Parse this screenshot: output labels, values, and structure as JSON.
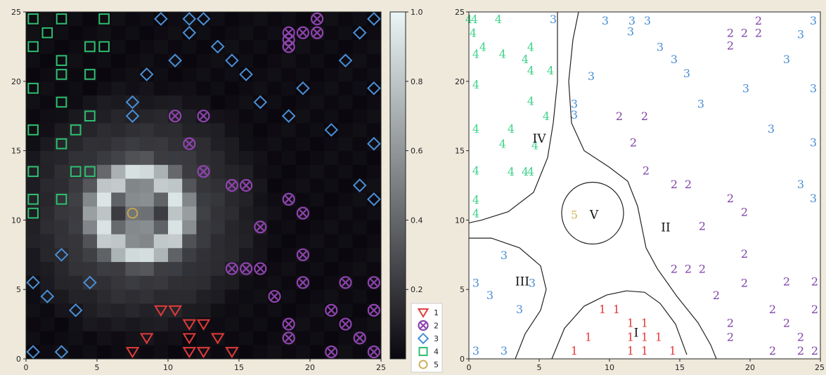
{
  "chart_data": [
    {
      "type": "scatter",
      "panel": "left",
      "xlim": [
        0,
        25
      ],
      "ylim": [
        0,
        25
      ],
      "xticks": [
        "0",
        "5",
        "10",
        "15",
        "20",
        "25"
      ],
      "yticks": [
        "0",
        "5",
        "10",
        "15",
        "20",
        "25"
      ],
      "background": "heatmap",
      "heatmap_feature": {
        "shape": "ring",
        "center": [
          8,
          10.5
        ],
        "inner_radius": 1.5,
        "outer_radius": 4.2,
        "peak": 1.0
      },
      "colorbar": {
        "range": [
          0,
          1.0
        ],
        "ticks": [
          "0.2",
          "0.4",
          "0.6",
          "0.8",
          "1.0"
        ]
      },
      "legend": {
        "placement": "bottom-right",
        "entries": [
          {
            "label": "1",
            "marker": "triangle-down",
            "color": "#e23a3a"
          },
          {
            "label": "2",
            "marker": "x-in-circle",
            "color": "#8e44ad"
          },
          {
            "label": "3",
            "marker": "diamond",
            "color": "#4a8fd6"
          },
          {
            "label": "4",
            "marker": "square",
            "color": "#2fbf71"
          },
          {
            "label": "5",
            "marker": "circle",
            "color": "#c9a94b"
          }
        ]
      },
      "series": [
        {
          "label": "1",
          "points": [
            [
              7.5,
              0.5
            ],
            [
              8.5,
              1.5
            ],
            [
              9.5,
              3.5
            ],
            [
              10.5,
              3.5
            ],
            [
              11.5,
              0.5
            ],
            [
              11.5,
              1.5
            ],
            [
              11.5,
              2.5
            ],
            [
              12.5,
              0.5
            ],
            [
              12.5,
              2.5
            ],
            [
              13.5,
              1.5
            ],
            [
              14.5,
              0.5
            ]
          ]
        },
        {
          "label": "2",
          "points": [
            [
              10.5,
              17.5
            ],
            [
              11.5,
              15.5
            ],
            [
              12.5,
              17.5
            ],
            [
              12.5,
              13.5
            ],
            [
              14.5,
              12.5
            ],
            [
              15.5,
              12.5
            ],
            [
              16.5,
              9.5
            ],
            [
              14.5,
              6.5
            ],
            [
              15.5,
              6.5
            ],
            [
              16.5,
              6.5
            ],
            [
              17.5,
              4.5
            ],
            [
              18.5,
              11.5
            ],
            [
              18.5,
              2.5
            ],
            [
              18.5,
              1.5
            ],
            [
              19.5,
              10.5
            ],
            [
              19.5,
              7.5
            ],
            [
              19.5,
              5.5
            ],
            [
              21.5,
              0.5
            ],
            [
              21.5,
              3.5
            ],
            [
              22.5,
              2.5
            ],
            [
              22.5,
              5.5
            ],
            [
              23.5,
              1.5
            ],
            [
              24.5,
              0.5
            ],
            [
              24.5,
              3.5
            ],
            [
              24.5,
              5.5
            ],
            [
              18.5,
              23.5
            ],
            [
              18.5,
              22.5
            ],
            [
              18.5,
              23.0
            ],
            [
              19.5,
              23.5
            ],
            [
              20.5,
              23.5
            ],
            [
              20.5,
              24.5
            ]
          ]
        },
        {
          "label": "3",
          "points": [
            [
              9.5,
              24.5
            ],
            [
              11.5,
              24.5
            ],
            [
              12.5,
              24.5
            ],
            [
              11.5,
              23.5
            ],
            [
              13.5,
              22.5
            ],
            [
              14.5,
              21.5
            ],
            [
              10.5,
              21.5
            ],
            [
              15.5,
              20.5
            ],
            [
              8.5,
              20.5
            ],
            [
              7.5,
              18.5
            ],
            [
              7.5,
              17.5
            ],
            [
              16.5,
              18.5
            ],
            [
              18.5,
              17.5
            ],
            [
              19.5,
              19.5
            ],
            [
              21.5,
              16.5
            ],
            [
              22.5,
              21.5
            ],
            [
              23.5,
              23.5
            ],
            [
              24.5,
              24.5
            ],
            [
              24.5,
              19.5
            ],
            [
              24.5,
              15.5
            ],
            [
              23.5,
              12.5
            ],
            [
              24.5,
              11.5
            ],
            [
              2.5,
              7.5
            ],
            [
              0.5,
              5.5
            ],
            [
              1.5,
              4.5
            ],
            [
              3.5,
              3.5
            ],
            [
              4.5,
              5.5
            ],
            [
              0.5,
              0.5
            ],
            [
              2.5,
              0.5
            ]
          ]
        },
        {
          "label": "4",
          "points": [
            [
              0.5,
              24.5
            ],
            [
              2.5,
              24.5
            ],
            [
              5.5,
              24.5
            ],
            [
              1.5,
              23.5
            ],
            [
              0.5,
              22.5
            ],
            [
              4.5,
              22.5
            ],
            [
              5.5,
              22.5
            ],
            [
              2.5,
              21.5
            ],
            [
              2.5,
              20.5
            ],
            [
              4.5,
              20.5
            ],
            [
              0.5,
              19.5
            ],
            [
              2.5,
              18.5
            ],
            [
              4.5,
              17.5
            ],
            [
              0.5,
              16.5
            ],
            [
              3.5,
              16.5
            ],
            [
              2.5,
              15.5
            ],
            [
              0.5,
              13.5
            ],
            [
              3.5,
              13.5
            ],
            [
              4.5,
              13.5
            ],
            [
              0.5,
              11.5
            ],
            [
              2.5,
              11.5
            ],
            [
              0.5,
              10.5
            ]
          ]
        },
        {
          "label": "5",
          "points": [
            [
              7.5,
              10.5
            ]
          ]
        }
      ]
    },
    {
      "type": "scatter",
      "panel": "right",
      "xlim": [
        0,
        25
      ],
      "ylim": [
        0,
        25
      ],
      "xticks": [
        "0",
        "5",
        "10",
        "15",
        "20",
        "25"
      ],
      "yticks": [
        "0",
        "5",
        "10",
        "15",
        "20",
        "25"
      ],
      "colors": {
        "1": "#e23a3a",
        "2": "#7d3fa6",
        "3": "#4a8fd6",
        "4": "#3fd38a",
        "5": "#d8b55a"
      },
      "region_labels": [
        {
          "text": "I",
          "x": 11.9,
          "y": 1.9
        },
        {
          "text": "II",
          "x": 14.0,
          "y": -1.2
        },
        {
          "text": "III",
          "x": 3.8,
          "y": 5.6
        },
        {
          "text": "IV",
          "x": 5.0,
          "y": 15.9
        },
        {
          "text": "V",
          "x": 8.9,
          "y": 10.4
        }
      ],
      "points": [
        {
          "c": "4",
          "x": 0.4,
          "y": 24.5
        },
        {
          "c": "4",
          "x": 2.1,
          "y": 24.5
        },
        {
          "c": "4",
          "x": 0.3,
          "y": 23.5
        },
        {
          "c": "4",
          "x": 1.0,
          "y": 22.5
        },
        {
          "c": "4",
          "x": 0.5,
          "y": 22.0
        },
        {
          "c": "4",
          "x": 2.4,
          "y": 22.0
        },
        {
          "c": "4",
          "x": 4.4,
          "y": 22.5
        },
        {
          "c": "4",
          "x": 4.0,
          "y": 21.6
        },
        {
          "c": "4",
          "x": 4.4,
          "y": 20.8
        },
        {
          "c": "4",
          "x": 5.8,
          "y": 20.8
        },
        {
          "c": "4",
          "x": 0.5,
          "y": 19.8
        },
        {
          "c": "4",
          "x": 4.4,
          "y": 18.6
        },
        {
          "c": "4",
          "x": 5.5,
          "y": 17.5
        },
        {
          "c": "4",
          "x": 0.5,
          "y": 16.6
        },
        {
          "c": "4",
          "x": 3.0,
          "y": 16.6
        },
        {
          "c": "4",
          "x": 2.4,
          "y": 15.5
        },
        {
          "c": "4",
          "x": 4.7,
          "y": 15.4
        },
        {
          "c": "4",
          "x": 0.5,
          "y": 13.6
        },
        {
          "c": "4",
          "x": 3.0,
          "y": 13.5
        },
        {
          "c": "4",
          "x": 4.0,
          "y": 13.5
        },
        {
          "c": "4",
          "x": 4.4,
          "y": 13.5
        },
        {
          "c": "4",
          "x": 0.5,
          "y": 11.5
        },
        {
          "c": "4",
          "x": 0.5,
          "y": 10.5
        },
        {
          "c": "4",
          "x": 0.0,
          "y": 24.5
        },
        {
          "c": "3",
          "x": 6.0,
          "y": 24.5
        },
        {
          "c": "3",
          "x": 9.7,
          "y": 24.4
        },
        {
          "c": "3",
          "x": 11.6,
          "y": 24.4
        },
        {
          "c": "3",
          "x": 12.7,
          "y": 24.4
        },
        {
          "c": "3",
          "x": 11.5,
          "y": 23.6
        },
        {
          "c": "3",
          "x": 13.6,
          "y": 22.5
        },
        {
          "c": "3",
          "x": 14.6,
          "y": 21.6
        },
        {
          "c": "3",
          "x": 8.7,
          "y": 20.4
        },
        {
          "c": "3",
          "x": 15.5,
          "y": 20.6
        },
        {
          "c": "3",
          "x": 7.5,
          "y": 18.4
        },
        {
          "c": "3",
          "x": 7.5,
          "y": 17.6
        },
        {
          "c": "3",
          "x": 16.5,
          "y": 18.4
        },
        {
          "c": "3",
          "x": 19.7,
          "y": 19.5
        },
        {
          "c": "3",
          "x": 21.5,
          "y": 16.6
        },
        {
          "c": "3",
          "x": 22.6,
          "y": 21.6
        },
        {
          "c": "3",
          "x": 23.6,
          "y": 23.4
        },
        {
          "c": "3",
          "x": 24.5,
          "y": 24.4
        },
        {
          "c": "3",
          "x": 24.5,
          "y": 19.5
        },
        {
          "c": "3",
          "x": 24.5,
          "y": 15.6
        },
        {
          "c": "3",
          "x": 23.6,
          "y": 12.6
        },
        {
          "c": "3",
          "x": 24.5,
          "y": 11.6
        },
        {
          "c": "3",
          "x": 2.5,
          "y": 7.5
        },
        {
          "c": "3",
          "x": 0.5,
          "y": 5.5
        },
        {
          "c": "3",
          "x": 1.5,
          "y": 4.6
        },
        {
          "c": "3",
          "x": 3.6,
          "y": 3.6
        },
        {
          "c": "3",
          "x": 4.5,
          "y": 5.5
        },
        {
          "c": "3",
          "x": 0.5,
          "y": 0.6
        },
        {
          "c": "3",
          "x": 2.5,
          "y": 0.6
        },
        {
          "c": "2",
          "x": 10.7,
          "y": 17.5
        },
        {
          "c": "2",
          "x": 11.7,
          "y": 15.6
        },
        {
          "c": "2",
          "x": 12.5,
          "y": 17.5
        },
        {
          "c": "2",
          "x": 12.6,
          "y": 13.6
        },
        {
          "c": "2",
          "x": 14.6,
          "y": 12.6
        },
        {
          "c": "2",
          "x": 15.6,
          "y": 12.6
        },
        {
          "c": "2",
          "x": 16.6,
          "y": 9.6
        },
        {
          "c": "2",
          "x": 14.6,
          "y": 6.5
        },
        {
          "c": "2",
          "x": 15.6,
          "y": 6.5
        },
        {
          "c": "2",
          "x": 16.6,
          "y": 6.5
        },
        {
          "c": "2",
          "x": 17.6,
          "y": 4.6
        },
        {
          "c": "2",
          "x": 18.6,
          "y": 11.6
        },
        {
          "c": "2",
          "x": 18.6,
          "y": 2.6
        },
        {
          "c": "2",
          "x": 18.6,
          "y": 1.6
        },
        {
          "c": "2",
          "x": 19.6,
          "y": 10.6
        },
        {
          "c": "2",
          "x": 19.6,
          "y": 7.6
        },
        {
          "c": "2",
          "x": 19.6,
          "y": 5.5
        },
        {
          "c": "2",
          "x": 21.6,
          "y": 0.6
        },
        {
          "c": "2",
          "x": 21.6,
          "y": 3.6
        },
        {
          "c": "2",
          "x": 22.6,
          "y": 2.6
        },
        {
          "c": "2",
          "x": 22.6,
          "y": 5.6
        },
        {
          "c": "2",
          "x": 23.6,
          "y": 1.6
        },
        {
          "c": "2",
          "x": 24.6,
          "y": 0.6
        },
        {
          "c": "2",
          "x": 24.6,
          "y": 3.6
        },
        {
          "c": "2",
          "x": 24.6,
          "y": 5.6
        },
        {
          "c": "2",
          "x": 23.6,
          "y": 0.6
        },
        {
          "c": "2",
          "x": 18.6,
          "y": 23.5
        },
        {
          "c": "2",
          "x": 18.6,
          "y": 22.6
        },
        {
          "c": "2",
          "x": 19.6,
          "y": 23.5
        },
        {
          "c": "2",
          "x": 20.6,
          "y": 23.5
        },
        {
          "c": "2",
          "x": 20.6,
          "y": 24.4
        },
        {
          "c": "1",
          "x": 7.5,
          "y": 0.6
        },
        {
          "c": "1",
          "x": 8.5,
          "y": 1.6
        },
        {
          "c": "1",
          "x": 9.5,
          "y": 3.6
        },
        {
          "c": "1",
          "x": 10.5,
          "y": 3.6
        },
        {
          "c": "1",
          "x": 11.5,
          "y": 0.6
        },
        {
          "c": "1",
          "x": 11.5,
          "y": 1.6
        },
        {
          "c": "1",
          "x": 11.5,
          "y": 2.6
        },
        {
          "c": "1",
          "x": 12.5,
          "y": 0.6
        },
        {
          "c": "1",
          "x": 12.5,
          "y": 2.6
        },
        {
          "c": "1",
          "x": 13.5,
          "y": 1.6
        },
        {
          "c": "1",
          "x": 14.5,
          "y": 0.6
        },
        {
          "c": "1",
          "x": 12.5,
          "y": 1.6
        },
        {
          "c": "5",
          "x": 7.5,
          "y": 10.4
        }
      ]
    }
  ]
}
